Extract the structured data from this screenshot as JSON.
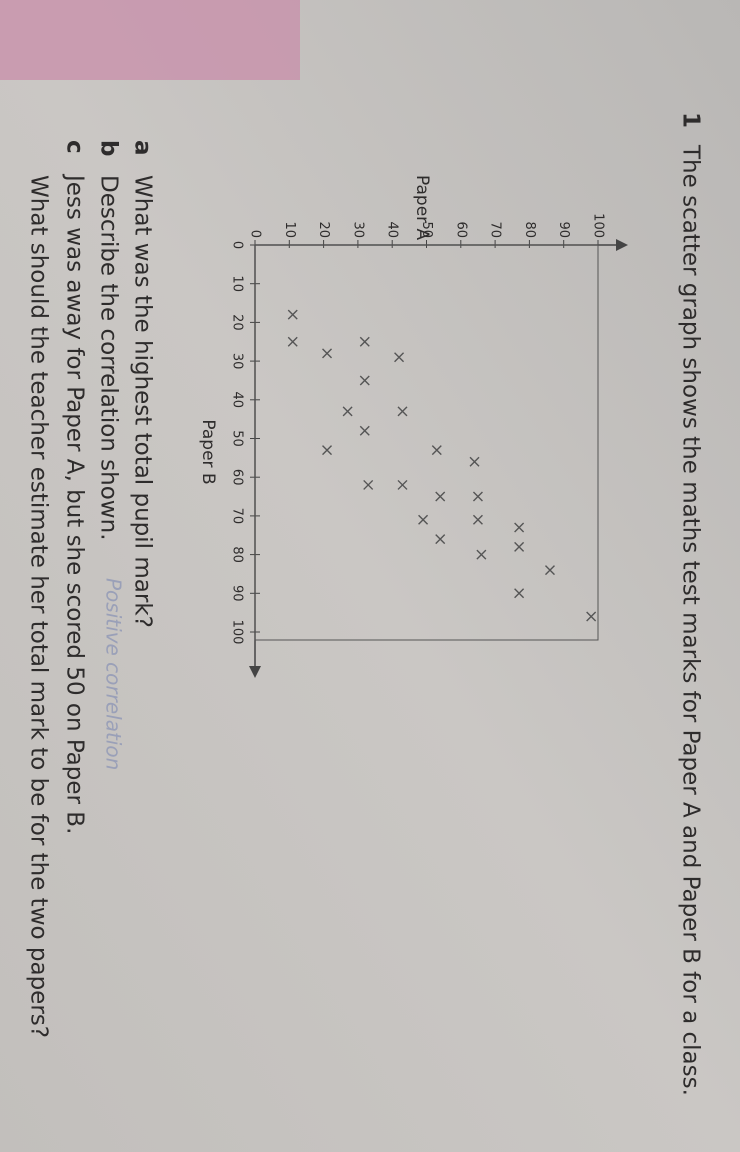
{
  "question_number": "1",
  "intro": "The scatter graph shows the maths test marks for Paper A and Paper B for a class.",
  "chart_data": {
    "type": "scatter",
    "xlabel": "Paper B",
    "ylabel": "Paper A",
    "x": [
      18,
      25,
      25,
      28,
      29,
      35,
      43,
      43,
      48,
      53,
      53,
      56,
      62,
      62,
      65,
      65,
      71,
      71,
      76,
      73,
      78,
      80,
      84,
      90,
      96
    ],
    "values": [
      11,
      11,
      32,
      21,
      42,
      32,
      27,
      43,
      32,
      21,
      53,
      64,
      43,
      33,
      54,
      65,
      65,
      49,
      54,
      77,
      77,
      66,
      86,
      77,
      98
    ],
    "color": "#555555",
    "xlim": [
      0,
      100
    ],
    "ylim": [
      0,
      100
    ],
    "xticks": [
      0,
      10,
      20,
      30,
      40,
      50,
      60,
      70,
      80,
      90,
      100
    ],
    "yticks": [
      0,
      10,
      20,
      30,
      40,
      50,
      60,
      70,
      80,
      90,
      100
    ]
  },
  "questions": [
    {
      "letter": "a",
      "text": "What was the highest total pupil mark?"
    },
    {
      "letter": "b",
      "text": "Describe the correlation shown."
    },
    {
      "letter": "c",
      "text": "Jess was away for Paper A, but she scored 50 on Paper B."
    },
    {
      "letter": "",
      "text": "What should the teacher estimate her total mark to be for the two papers?"
    }
  ],
  "handwritten_answer": "Positive correlation"
}
